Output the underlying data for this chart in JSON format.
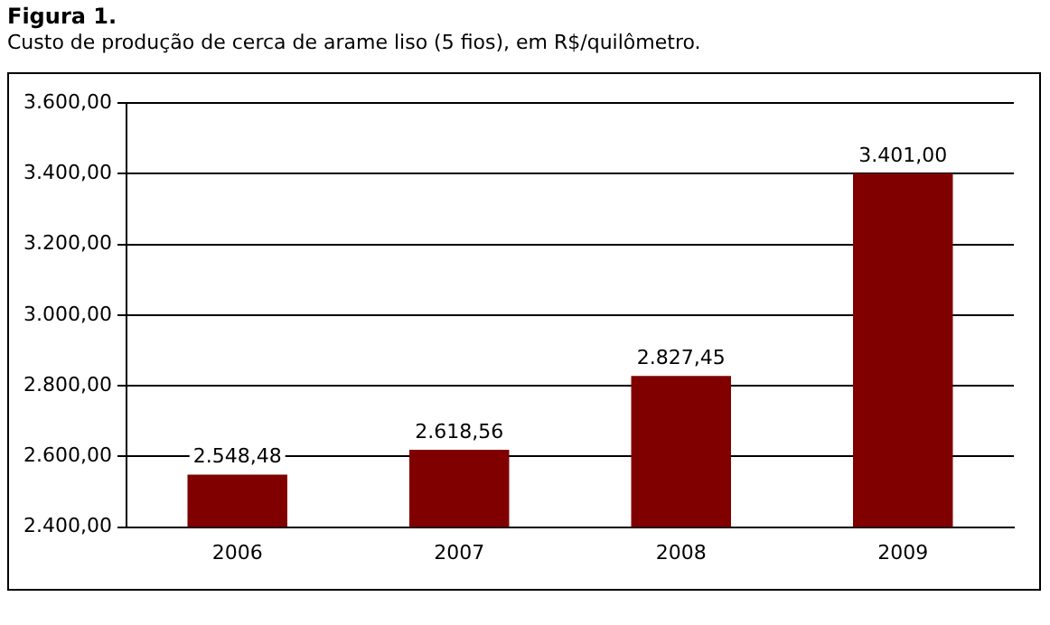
{
  "chart_data": {
    "type": "bar",
    "title": "Figura 1.",
    "subtitle": "Custo de produção de cerca de arame liso (5 fios), em R$/quilômetro.",
    "categories": [
      "2006",
      "2007",
      "2008",
      "2009"
    ],
    "values": [
      2548.48,
      2618.56,
      2827.45,
      3401.0
    ],
    "value_labels": [
      "2.548,48",
      "2.618,56",
      "2.827,45",
      "3.401,00"
    ],
    "color": "#800000",
    "ylim": [
      2400,
      3600
    ],
    "yticks": [
      {
        "value": 2400,
        "label": "2.400,00"
      },
      {
        "value": 2600,
        "label": "2.600,00"
      },
      {
        "value": 2800,
        "label": "2.800,00"
      },
      {
        "value": 3000,
        "label": "3.000,00"
      },
      {
        "value": 3200,
        "label": "3.200,00"
      },
      {
        "value": 3400,
        "label": "3.400,00"
      },
      {
        "value": 3600,
        "label": "3.600,00"
      }
    ],
    "grid": "y",
    "legend": false
  }
}
